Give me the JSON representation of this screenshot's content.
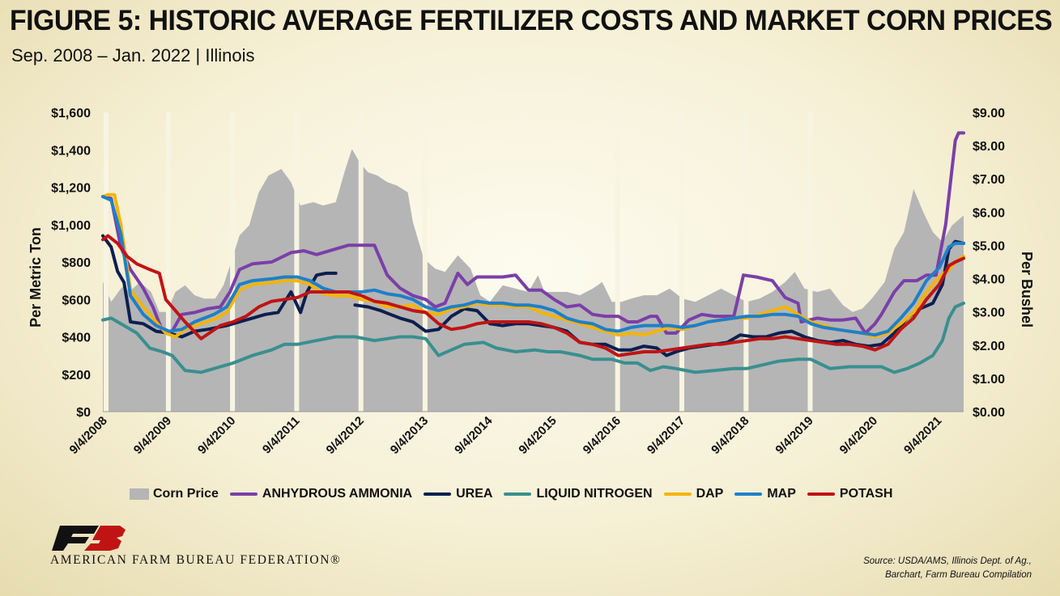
{
  "header": {
    "title": "FIGURE 5: HISTORIC AVERAGE FERTILIZER COSTS AND MARKET CORN PRICES",
    "subtitle": "Sep. 2008 – Jan. 2022 | Illinois"
  },
  "footer": {
    "org_name": "AMERICAN FARM BUREAU FEDERATION®",
    "logo_text": "FB",
    "source_line1": "Source: USDA/AMS, Illinois Dept. of Ag.,",
    "source_line2": "Barchart, Farm Bureau Compilation"
  },
  "chart_data": {
    "type": "line",
    "title": "FIGURE 5: HISTORIC AVERAGE FERTILIZER COSTS AND MARKET CORN PRICES",
    "subtitle": "Sep. 2008 – Jan. 2022 | Illinois",
    "ylabel": "Per Metric Ton",
    "y2label": "Per Bushel",
    "ylim": [
      0,
      1600
    ],
    "y2lim": [
      0,
      9
    ],
    "yticks": [
      "$0",
      "$200",
      "$400",
      "$600",
      "$800",
      "$1,000",
      "$1,200",
      "$1,400",
      "$1,600"
    ],
    "y2ticks": [
      "$0.00",
      "$1.00",
      "$2.00",
      "$3.00",
      "$4.00",
      "$5.00",
      "$6.00",
      "$7.00",
      "$8.00",
      "$9.00"
    ],
    "xlim": [
      2008.67,
      2022.08
    ],
    "xticks": [
      "9/4/2008",
      "9/4/2009",
      "9/4/2010",
      "9/4/2011",
      "9/4/2012",
      "9/4/2013",
      "9/4/2014",
      "9/4/2015",
      "9/4/2016",
      "9/4/2017",
      "9/4/2018",
      "9/4/2019",
      "9/4/2020",
      "9/4/2021"
    ],
    "xtick_years": [
      2008.67,
      2009.67,
      2010.67,
      2011.67,
      2012.67,
      2013.67,
      2014.67,
      2015.67,
      2016.67,
      2017.67,
      2018.67,
      2019.67,
      2020.67,
      2021.67
    ],
    "legend_position": "bottom",
    "series": [
      {
        "name": "Corn Price",
        "kind": "area",
        "axis": "right",
        "color": "#b5b5b5",
        "x": [
          2008.67,
          2008.8,
          2008.95,
          2009.0,
          2009.08,
          2009.25,
          2009.42,
          2009.55,
          2009.67,
          2009.8,
          2009.95,
          2010.1,
          2010.25,
          2010.42,
          2010.55,
          2010.67,
          2010.8,
          2010.95,
          2011.1,
          2011.25,
          2011.45,
          2011.6,
          2011.75,
          2011.95,
          2012.1,
          2012.3,
          2012.45,
          2012.55,
          2012.67,
          2012.8,
          2012.95,
          2013.1,
          2013.25,
          2013.42,
          2013.5,
          2013.67,
          2013.85,
          2014.0,
          2014.2,
          2014.4,
          2014.55,
          2014.7,
          2014.9,
          2015.1,
          2015.3,
          2015.45,
          2015.55,
          2015.7,
          2015.9,
          2016.1,
          2016.3,
          2016.45,
          2016.6,
          2016.75,
          2016.9,
          2017.1,
          2017.3,
          2017.5,
          2017.7,
          2017.9,
          2018.1,
          2018.3,
          2018.5,
          2018.7,
          2018.9,
          2019.1,
          2019.3,
          2019.45,
          2019.6,
          2019.8,
          2020.0,
          2020.2,
          2020.35,
          2020.5,
          2020.65,
          2020.85,
          2021.0,
          2021.15,
          2021.3,
          2021.45,
          2021.6,
          2021.75,
          2021.9,
          2022.08
        ],
        "values": [
          3.9,
          3.3,
          3.7,
          3.8,
          3.6,
          3.9,
          3.6,
          3.0,
          3.0,
          3.6,
          3.8,
          3.5,
          3.4,
          3.4,
          3.8,
          4.5,
          5.3,
          5.6,
          6.6,
          7.1,
          7.3,
          6.9,
          6.2,
          6.3,
          6.2,
          6.3,
          7.3,
          7.9,
          7.5,
          7.2,
          7.1,
          6.9,
          6.8,
          6.6,
          5.7,
          4.6,
          4.3,
          4.2,
          4.7,
          4.3,
          3.5,
          3.3,
          3.8,
          3.7,
          3.6,
          4.1,
          3.6,
          3.6,
          3.6,
          3.5,
          3.7,
          3.9,
          3.3,
          3.3,
          3.4,
          3.5,
          3.5,
          3.7,
          3.4,
          3.3,
          3.5,
          3.7,
          3.5,
          3.3,
          3.4,
          3.6,
          3.9,
          4.2,
          3.7,
          3.6,
          3.7,
          3.2,
          3.0,
          3.1,
          3.4,
          3.9,
          4.9,
          5.4,
          6.7,
          6.0,
          5.4,
          5.1,
          5.6,
          5.9
        ]
      },
      {
        "name": "ANHYDROUS AMMONIA",
        "kind": "line",
        "axis": "left",
        "color": "#7b3fa8",
        "x": [
          2008.67,
          2008.8,
          2008.95,
          2009.1,
          2009.3,
          2009.45,
          2009.6,
          2009.75,
          2009.9,
          2010.1,
          2010.3,
          2010.5,
          2010.65,
          2010.8,
          2011.0,
          2011.3,
          2011.6,
          2011.8,
          2012.0,
          2012.3,
          2012.5,
          2012.7,
          2012.9,
          2013.1,
          2013.3,
          2013.5,
          2013.7,
          2013.85,
          2014.0,
          2014.2,
          2014.35,
          2014.5,
          2014.7,
          2014.9,
          2015.1,
          2015.3,
          2015.5,
          2015.7,
          2015.9,
          2016.1,
          2016.3,
          2016.5,
          2016.7,
          2016.85,
          2017.0,
          2017.2,
          2017.3,
          2017.45,
          2017.6,
          2017.8,
          2018.0,
          2018.2,
          2018.5,
          2018.65,
          2018.85,
          2019.1,
          2019.3,
          2019.5,
          2019.55,
          2019.8,
          2020.0,
          2020.2,
          2020.4,
          2020.55,
          2020.7,
          2020.8,
          2021.0,
          2021.15,
          2021.35,
          2021.5,
          2021.65,
          2021.8,
          2021.9,
          2021.95,
          2022.0,
          2022.08
        ],
        "values": [
          1150,
          1140,
          880,
          760,
          660,
          560,
          430,
          430,
          520,
          530,
          550,
          560,
          640,
          760,
          790,
          800,
          850,
          860,
          840,
          870,
          890,
          890,
          890,
          730,
          660,
          620,
          600,
          560,
          580,
          740,
          680,
          720,
          720,
          720,
          730,
          650,
          650,
          600,
          560,
          570,
          520,
          510,
          510,
          480,
          480,
          510,
          510,
          420,
          420,
          490,
          520,
          510,
          510,
          730,
          720,
          700,
          610,
          580,
          480,
          500,
          490,
          490,
          500,
          420,
          470,
          520,
          640,
          700,
          700,
          730,
          730,
          1000,
          1300,
          1450,
          1490,
          1490
        ]
      },
      {
        "name": "UREA",
        "kind": "line",
        "axis": "left",
        "color": "#0d1f4f",
        "x": [
          2008.67,
          2008.8,
          2008.9,
          2009.0,
          2009.1,
          2009.3,
          2009.5,
          2009.7,
          2009.9,
          2010.1,
          2010.3,
          2010.6,
          2010.8,
          2011.0,
          2011.2,
          2011.4,
          2011.6,
          2011.75,
          2011.85,
          2012.0,
          2012.15,
          2012.3,
          2012.5,
          2012.6,
          2012.8,
          2013.0,
          2013.15,
          2013.3,
          2013.5,
          2013.7,
          2013.9,
          2014.1,
          2014.3,
          2014.5,
          2014.7,
          2014.9,
          2015.1,
          2015.3,
          2015.5,
          2015.7,
          2015.9,
          2016.1,
          2016.3,
          2016.5,
          2016.7,
          2016.9,
          2017.1,
          2017.3,
          2017.45,
          2017.6,
          2017.8,
          2018.0,
          2018.2,
          2018.4,
          2018.6,
          2018.8,
          2019.0,
          2019.2,
          2019.4,
          2019.6,
          2019.8,
          2020.0,
          2020.2,
          2020.4,
          2020.6,
          2020.8,
          2021.0,
          2021.2,
          2021.4,
          2021.6,
          2021.75,
          2021.85,
          2021.95,
          2022.08
        ],
        "values": [
          940,
          880,
          750,
          690,
          480,
          470,
          430,
          420,
          400,
          430,
          440,
          460,
          480,
          500,
          520,
          530,
          640,
          530,
          640,
          730,
          740,
          740,
          null,
          570,
          560,
          540,
          520,
          500,
          480,
          430,
          440,
          510,
          550,
          540,
          470,
          460,
          470,
          470,
          460,
          450,
          430,
          370,
          360,
          360,
          330,
          330,
          350,
          340,
          300,
          320,
          340,
          350,
          360,
          370,
          410,
          400,
          400,
          420,
          430,
          400,
          380,
          370,
          380,
          360,
          350,
          360,
          420,
          500,
          550,
          580,
          680,
          870,
          910,
          900
        ]
      },
      {
        "name": "LIQUID NITROGEN",
        "kind": "line",
        "axis": "left",
        "color": "#3a8f8f",
        "x": [
          2008.67,
          2008.8,
          2009.0,
          2009.2,
          2009.4,
          2009.6,
          2009.75,
          2009.95,
          2010.2,
          2010.5,
          2010.7,
          2011.0,
          2011.3,
          2011.5,
          2011.7,
          2012.0,
          2012.3,
          2012.6,
          2012.9,
          2013.1,
          2013.3,
          2013.5,
          2013.7,
          2013.9,
          2014.1,
          2014.3,
          2014.6,
          2014.8,
          2015.1,
          2015.4,
          2015.6,
          2015.8,
          2016.1,
          2016.3,
          2016.6,
          2016.8,
          2017.0,
          2017.2,
          2017.4,
          2017.6,
          2017.9,
          2018.2,
          2018.5,
          2018.7,
          2018.95,
          2019.2,
          2019.5,
          2019.7,
          2020.0,
          2020.3,
          2020.6,
          2020.8,
          2021.0,
          2021.2,
          2021.4,
          2021.6,
          2021.75,
          2021.85,
          2021.95,
          2022.08
        ],
        "values": [
          490,
          500,
          460,
          420,
          340,
          320,
          300,
          220,
          210,
          240,
          260,
          300,
          330,
          360,
          360,
          380,
          400,
          400,
          380,
          390,
          400,
          400,
          390,
          300,
          330,
          360,
          370,
          340,
          320,
          330,
          320,
          320,
          300,
          280,
          280,
          260,
          260,
          220,
          240,
          230,
          210,
          220,
          230,
          230,
          250,
          270,
          280,
          280,
          230,
          240,
          240,
          240,
          210,
          230,
          260,
          300,
          380,
          500,
          560,
          580
        ]
      },
      {
        "name": "DAP",
        "kind": "line",
        "axis": "left",
        "color": "#f5b400",
        "x": [
          2008.67,
          2008.75,
          2008.85,
          2008.95,
          2009.1,
          2009.3,
          2009.5,
          2009.65,
          2009.8,
          2009.95,
          2010.2,
          2010.45,
          2010.6,
          2010.8,
          2011.0,
          2011.3,
          2011.5,
          2011.7,
          2011.9,
          2012.1,
          2012.3,
          2012.5,
          2012.7,
          2012.9,
          2013.1,
          2013.3,
          2013.5,
          2013.7,
          2013.9,
          2014.1,
          2014.3,
          2014.5,
          2014.7,
          2014.9,
          2015.1,
          2015.3,
          2015.5,
          2015.7,
          2015.9,
          2016.1,
          2016.3,
          2016.5,
          2016.7,
          2016.9,
          2017.1,
          2017.3,
          2017.5,
          2017.7,
          2017.9,
          2018.1,
          2018.3,
          2018.5,
          2018.7,
          2018.9,
          2019.1,
          2019.3,
          2019.5,
          2019.7,
          2019.9,
          2020.1,
          2020.3,
          2020.5,
          2020.7,
          2020.9,
          2021.1,
          2021.3,
          2021.5,
          2021.7,
          2021.85,
          2021.95,
          2022.08
        ],
        "values": [
          1150,
          1160,
          1160,
          1000,
          650,
          560,
          480,
          420,
          400,
          440,
          470,
          500,
          530,
          650,
          680,
          690,
          700,
          700,
          680,
          630,
          620,
          620,
          600,
          590,
          560,
          560,
          570,
          530,
          520,
          550,
          560,
          580,
          570,
          570,
          560,
          560,
          530,
          510,
          490,
          470,
          450,
          430,
          410,
          420,
          410,
          430,
          450,
          440,
          460,
          480,
          490,
          500,
          500,
          520,
          540,
          560,
          520,
          480,
          460,
          440,
          430,
          420,
          400,
          420,
          470,
          530,
          640,
          720,
          760,
          800,
          830
        ]
      },
      {
        "name": "MAP",
        "kind": "line",
        "axis": "left",
        "color": "#1f7fc8",
        "x": [
          2008.67,
          2008.8,
          2008.95,
          2009.1,
          2009.3,
          2009.5,
          2009.7,
          2009.9,
          2010.1,
          2010.4,
          2010.6,
          2010.8,
          2011.0,
          2011.3,
          2011.5,
          2011.7,
          2011.9,
          2012.1,
          2012.3,
          2012.5,
          2012.7,
          2012.9,
          2013.1,
          2013.3,
          2013.5,
          2013.7,
          2013.9,
          2014.1,
          2014.3,
          2014.5,
          2014.7,
          2014.9,
          2015.1,
          2015.3,
          2015.5,
          2015.7,
          2015.9,
          2016.1,
          2016.3,
          2016.5,
          2016.7,
          2016.9,
          2017.1,
          2017.3,
          2017.5,
          2017.7,
          2017.9,
          2018.1,
          2018.3,
          2018.5,
          2018.7,
          2018.9,
          2019.1,
          2019.3,
          2019.5,
          2019.7,
          2019.9,
          2020.1,
          2020.3,
          2020.5,
          2020.7,
          2020.9,
          2021.1,
          2021.3,
          2021.5,
          2021.7,
          2021.85,
          2021.95,
          2022.08
        ],
        "values": [
          1150,
          1130,
          950,
          620,
          520,
          460,
          430,
          440,
          480,
          520,
          560,
          680,
          700,
          710,
          720,
          720,
          700,
          660,
          640,
          640,
          640,
          650,
          630,
          620,
          600,
          560,
          540,
          560,
          570,
          590,
          580,
          580,
          570,
          570,
          560,
          540,
          500,
          480,
          470,
          440,
          430,
          450,
          460,
          460,
          460,
          450,
          460,
          480,
          490,
          500,
          510,
          510,
          520,
          520,
          510,
          470,
          450,
          440,
          430,
          420,
          410,
          430,
          500,
          580,
          700,
          770,
          880,
          900,
          900
        ]
      },
      {
        "name": "POTASH",
        "kind": "line",
        "axis": "left",
        "color": "#c01414",
        "x": [
          2008.67,
          2008.75,
          2008.9,
          2009.05,
          2009.2,
          2009.4,
          2009.55,
          2009.65,
          2009.8,
          2009.95,
          2010.2,
          2010.5,
          2010.7,
          2010.9,
          2011.1,
          2011.3,
          2011.5,
          2011.7,
          2011.9,
          2012.1,
          2012.3,
          2012.5,
          2012.7,
          2012.9,
          2013.1,
          2013.3,
          2013.5,
          2013.7,
          2013.9,
          2014.1,
          2014.3,
          2014.5,
          2014.7,
          2014.9,
          2015.1,
          2015.3,
          2015.5,
          2015.7,
          2015.9,
          2016.1,
          2016.3,
          2016.5,
          2016.7,
          2016.9,
          2017.1,
          2017.3,
          2017.5,
          2017.7,
          2017.9,
          2018.1,
          2018.3,
          2018.5,
          2018.7,
          2018.9,
          2019.1,
          2019.3,
          2019.5,
          2019.7,
          2019.9,
          2020.1,
          2020.3,
          2020.5,
          2020.7,
          2020.9,
          2021.1,
          2021.3,
          2021.5,
          2021.7,
          2021.85,
          2021.95,
          2022.08
        ],
        "values": [
          920,
          940,
          900,
          830,
          790,
          760,
          740,
          600,
          540,
          480,
          390,
          460,
          480,
          510,
          560,
          590,
          600,
          610,
          640,
          640,
          640,
          640,
          620,
          590,
          580,
          560,
          540,
          530,
          470,
          440,
          450,
          470,
          480,
          480,
          480,
          480,
          470,
          450,
          420,
          370,
          360,
          340,
          300,
          310,
          320,
          320,
          330,
          340,
          350,
          360,
          360,
          370,
          380,
          390,
          390,
          400,
          390,
          380,
          370,
          360,
          360,
          350,
          330,
          360,
          440,
          500,
          600,
          680,
          780,
          800,
          820
        ]
      }
    ]
  },
  "colors": {
    "background_center": "#fdfbef",
    "background_edge": "#e7dcb0",
    "axis_text": "#111111",
    "logo_red": "#c01414"
  }
}
